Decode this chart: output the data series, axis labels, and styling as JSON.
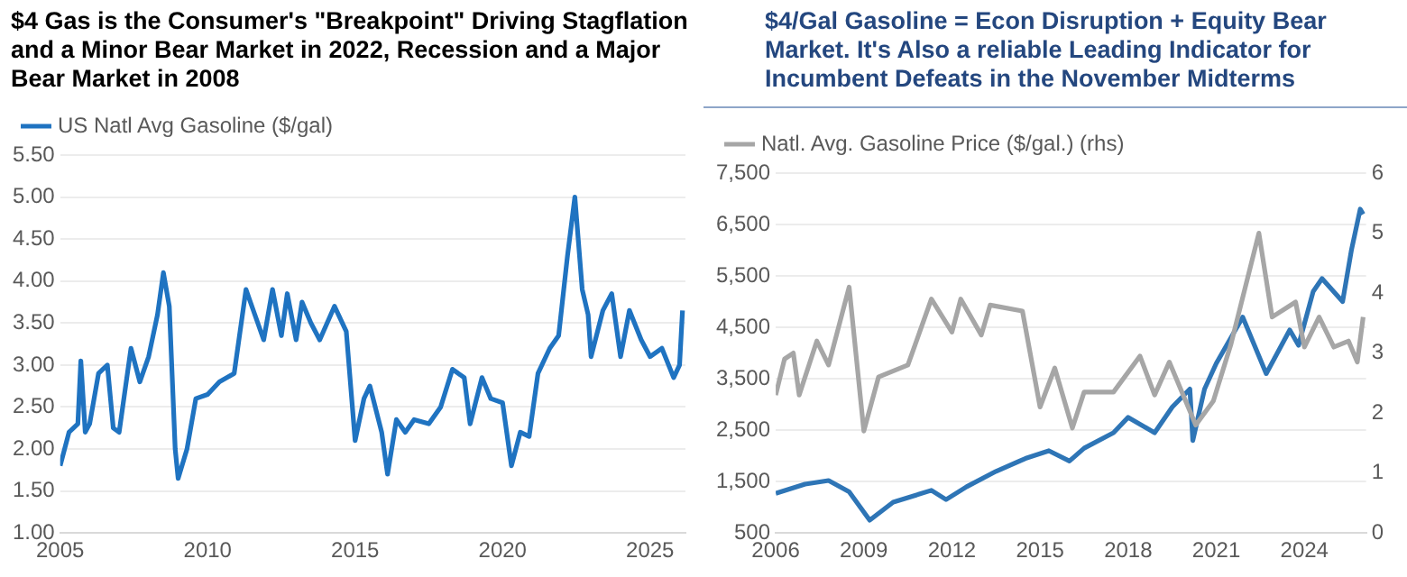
{
  "chart_data": [
    {
      "type": "line",
      "title": "$4 Gas is the Consumer's \"Breakpoint\" Driving Stagflation and a Minor Bear Market in 2022, Recession and a Major Bear Market in 2008",
      "x": [
        2005.0,
        2005.3,
        2005.6,
        2005.7,
        2005.85,
        2006.0,
        2006.3,
        2006.6,
        2006.8,
        2007.0,
        2007.4,
        2007.7,
        2008.0,
        2008.3,
        2008.5,
        2008.7,
        2008.9,
        2009.0,
        2009.3,
        2009.6,
        2010.0,
        2010.4,
        2010.9,
        2011.3,
        2011.6,
        2011.9,
        2012.2,
        2012.5,
        2012.7,
        2013.0,
        2013.2,
        2013.5,
        2013.8,
        2014.3,
        2014.7,
        2015.0,
        2015.3,
        2015.5,
        2015.9,
        2016.1,
        2016.4,
        2016.7,
        2017.0,
        2017.5,
        2017.9,
        2018.3,
        2018.7,
        2018.9,
        2019.3,
        2019.6,
        2020.0,
        2020.3,
        2020.6,
        2020.9,
        2021.2,
        2021.6,
        2021.9,
        2022.2,
        2022.45,
        2022.7,
        2022.9,
        2023.0,
        2023.4,
        2023.7,
        2024.0,
        2024.3,
        2024.7,
        2025.0,
        2025.4,
        2025.8,
        2026.0,
        2026.1
      ],
      "series": [
        {
          "name": "US Natl Avg Gasoline ($/gal)",
          "color": "#1f73c1",
          "values": [
            1.8,
            2.2,
            2.3,
            3.05,
            2.2,
            2.3,
            2.9,
            3.0,
            2.25,
            2.2,
            3.2,
            2.8,
            3.1,
            3.6,
            4.1,
            3.7,
            2.0,
            1.65,
            2.0,
            2.6,
            2.65,
            2.8,
            2.9,
            3.9,
            3.6,
            3.3,
            3.9,
            3.35,
            3.85,
            3.3,
            3.75,
            3.5,
            3.3,
            3.7,
            3.4,
            2.1,
            2.6,
            2.75,
            2.2,
            1.7,
            2.35,
            2.2,
            2.35,
            2.3,
            2.5,
            2.95,
            2.85,
            2.3,
            2.85,
            2.6,
            2.55,
            1.8,
            2.2,
            2.15,
            2.9,
            3.2,
            3.35,
            4.3,
            5.0,
            3.9,
            3.6,
            3.1,
            3.65,
            3.85,
            3.1,
            3.65,
            3.3,
            3.1,
            3.2,
            2.85,
            3.0,
            3.65
          ]
        }
      ],
      "xlim": [
        2005,
        2026.2
      ],
      "xticks": [
        2005,
        2010,
        2015,
        2020,
        2025
      ],
      "ylim": [
        1,
        5.5
      ],
      "yticks": [
        {
          "value": 1,
          "label": "1.00"
        },
        {
          "value": 1.5,
          "label": "1.50"
        },
        {
          "value": 2,
          "label": "2.00"
        },
        {
          "value": 2.5,
          "label": "2.50"
        },
        {
          "value": 3,
          "label": "3.00"
        },
        {
          "value": 3.5,
          "label": "3.50"
        },
        {
          "value": 4,
          "label": "4.00"
        },
        {
          "value": 4.5,
          "label": "4.50"
        },
        {
          "value": 5,
          "label": "5.00"
        },
        {
          "value": 5.5,
          "label": "5.50"
        }
      ],
      "grid": "y",
      "legend": "top left",
      "marker": "none"
    },
    {
      "type": "line",
      "title": "$4/Gal Gasoline = Econ Disruption + Equity Bear Market. It's Also a reliable Leading Indicator for Incumbent Defeats in the November Midterms",
      "series": [
        {
          "color": "#2e75b6",
          "x": [
            2006.0,
            2007.0,
            2007.8,
            2008.5,
            2009.2,
            2010.0,
            2011.3,
            2011.8,
            2012.5,
            2013.5,
            2014.5,
            2015.3,
            2016.0,
            2016.5,
            2017.5,
            2018.0,
            2018.9,
            2019.5,
            2020.1,
            2020.2,
            2020.6,
            2021.0,
            2021.9,
            2022.7,
            2023.5,
            2023.8,
            2024.3,
            2024.6,
            2025.3,
            2025.6,
            2025.9,
            2026.0
          ],
          "values": [
            1270,
            1450,
            1520,
            1300,
            750,
            1100,
            1330,
            1150,
            1400,
            1700,
            1950,
            2100,
            1900,
            2150,
            2450,
            2750,
            2450,
            2950,
            3300,
            2300,
            3300,
            3800,
            4700,
            3600,
            4450,
            4150,
            5200,
            5450,
            5000,
            6000,
            6800,
            6700
          ]
        },
        {
          "name": "Natl. Avg. Gasoline Price ($/gal.) (rhs)",
          "color": "#a6a6a6",
          "axis": "y2",
          "x": [
            2006.0,
            2006.3,
            2006.6,
            2006.8,
            2007.4,
            2007.8,
            2008.5,
            2009.0,
            2009.5,
            2010.5,
            2011.3,
            2012.0,
            2012.3,
            2013.0,
            2013.3,
            2014.4,
            2015.0,
            2015.5,
            2016.1,
            2016.5,
            2017.5,
            2018.4,
            2018.9,
            2019.4,
            2020.3,
            2020.9,
            2021.5,
            2022.45,
            2022.9,
            2023.7,
            2024.0,
            2024.5,
            2025.0,
            2025.5,
            2025.8,
            2026.0
          ],
          "values": [
            2.3,
            2.9,
            3.0,
            2.3,
            3.2,
            2.8,
            4.1,
            1.7,
            2.6,
            2.8,
            3.9,
            3.35,
            3.9,
            3.3,
            3.8,
            3.7,
            2.1,
            2.75,
            1.75,
            2.35,
            2.35,
            2.95,
            2.3,
            2.85,
            1.8,
            2.2,
            3.15,
            5.0,
            3.6,
            3.85,
            3.1,
            3.6,
            3.1,
            3.2,
            2.85,
            3.6
          ]
        }
      ],
      "xlim": [
        2006,
        2026.1
      ],
      "xticks": [
        2006,
        2009,
        2012,
        2015,
        2018,
        2021,
        2024
      ],
      "ylim": [
        500,
        7500
      ],
      "yticks": [
        {
          "value": 500,
          "label": "500"
        },
        {
          "value": 1500,
          "label": "1,500"
        },
        {
          "value": 2500,
          "label": "2,500"
        },
        {
          "value": 3500,
          "label": "3,500"
        },
        {
          "value": 4500,
          "label": "4,500"
        },
        {
          "value": 5500,
          "label": "5,500"
        },
        {
          "value": 6500,
          "label": "6,500"
        },
        {
          "value": 7500,
          "label": "7,500"
        }
      ],
      "y2lim": [
        0,
        6
      ],
      "y2ticks": [
        0,
        1,
        2,
        3,
        4,
        5,
        6
      ],
      "grid": "y",
      "legend": "top left",
      "marker": "none"
    }
  ]
}
